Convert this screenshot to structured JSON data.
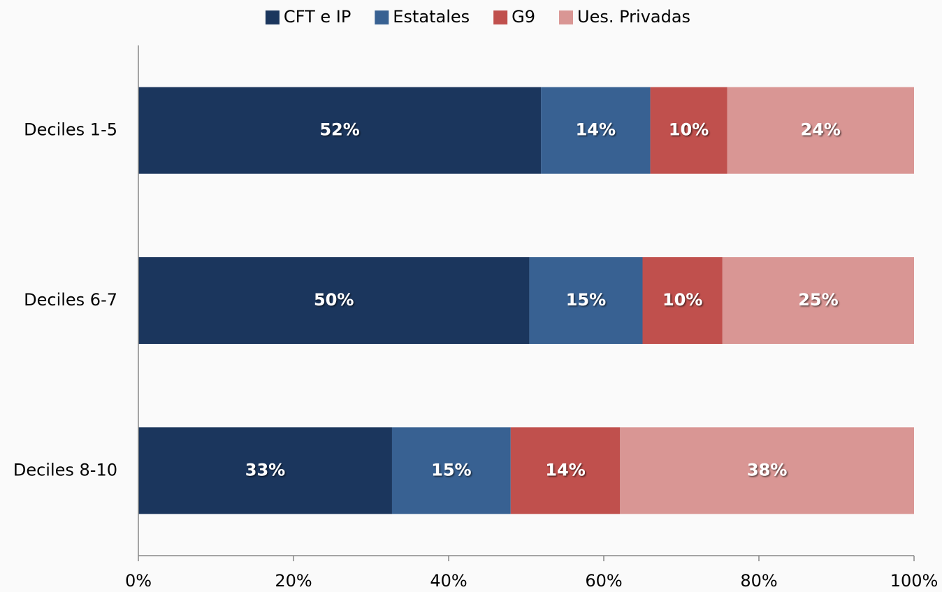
{
  "chart_data": {
    "type": "bar",
    "orientation": "horizontal",
    "stacked": true,
    "categories": [
      "Deciles 1-5",
      "Deciles 6-7",
      "Deciles 8-10"
    ],
    "series": [
      {
        "name": "CFT e IP",
        "color": "#1b365d",
        "values": [
          51.9,
          50.4,
          32.7
        ],
        "value_labels": [
          "52%",
          "50%",
          "33%"
        ]
      },
      {
        "name": "Estatales",
        "color": "#386192",
        "values": [
          14.1,
          14.6,
          15.3
        ],
        "value_labels": [
          "14%",
          "15%",
          "15%"
        ]
      },
      {
        "name": "G9",
        "color": "#c0504d",
        "values": [
          9.9,
          10.3,
          14.1
        ],
        "value_labels": [
          "10%",
          "10%",
          "14%"
        ]
      },
      {
        "name": "Ues. Privadas",
        "color": "#d99694",
        "values": [
          24.1,
          24.7,
          37.9
        ],
        "value_labels": [
          "24%",
          "25%",
          "38%"
        ]
      }
    ],
    "xlim": [
      0,
      100
    ],
    "xticks": [
      {
        "value": 0,
        "label": "0%"
      },
      {
        "value": 20,
        "label": "20%"
      },
      {
        "value": 40,
        "label": "40%"
      },
      {
        "value": 60,
        "label": "60%"
      },
      {
        "value": 80,
        "label": "80%"
      },
      {
        "value": 100,
        "label": "100%"
      }
    ],
    "legend": "top"
  }
}
